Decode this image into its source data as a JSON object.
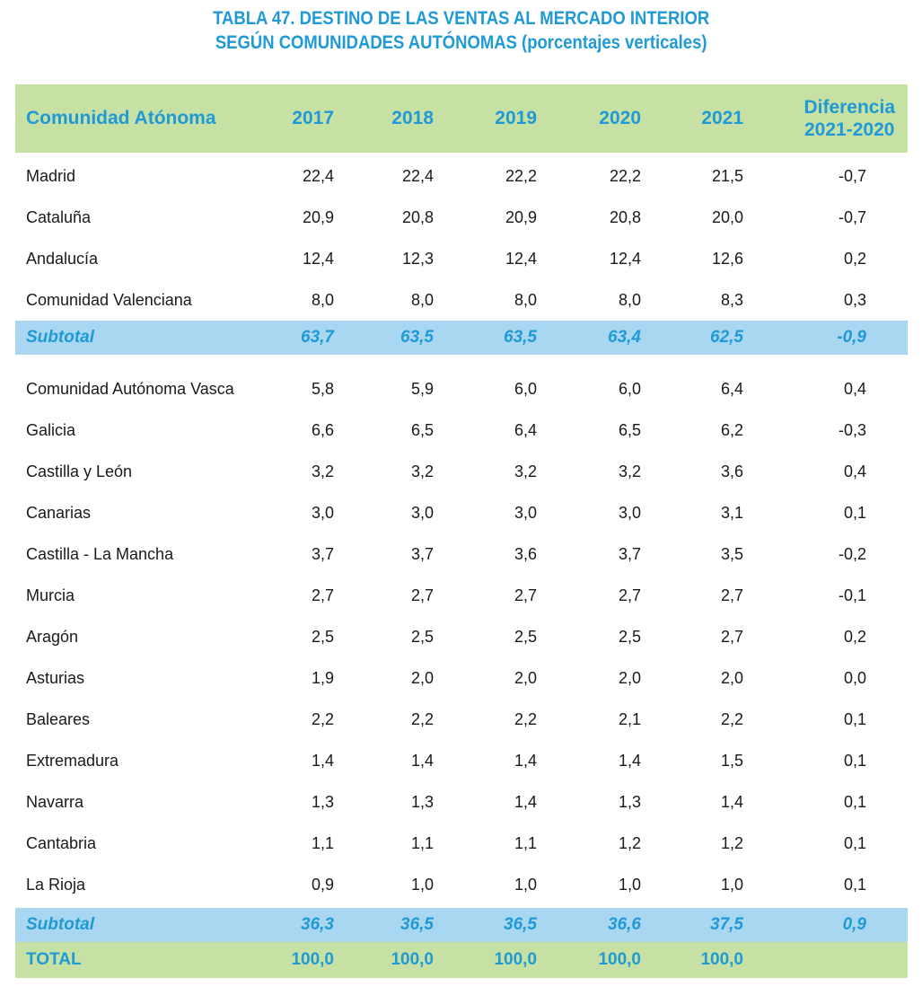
{
  "title": {
    "line1": "TABLA 47.  DESTINO DE LAS VENTAS AL MERCADO INTERIOR",
    "line2": "SEGÚN COMUNIDADES AUTÓNOMAS (porcentajes verticales)"
  },
  "header": {
    "name": "Comunidad Atónoma",
    "years": [
      "2017",
      "2018",
      "2019",
      "2020",
      "2021"
    ],
    "diff_line1": "Diferencia",
    "diff_line2": "2021-2020"
  },
  "group1": [
    {
      "name": "Madrid",
      "values": [
        "22,4",
        "22,4",
        "22,2",
        "22,2",
        "21,5",
        "-0,7"
      ]
    },
    {
      "name": "Cataluña",
      "values": [
        "20,9",
        "20,8",
        "20,9",
        "20,8",
        "20,0",
        "-0,7"
      ]
    },
    {
      "name": "Andalucía",
      "values": [
        "12,4",
        "12,3",
        "12,4",
        "12,4",
        "12,6",
        "0,2"
      ]
    },
    {
      "name": "Comunidad Valenciana",
      "values": [
        "8,0",
        "8,0",
        "8,0",
        "8,0",
        "8,3",
        "0,3"
      ]
    }
  ],
  "subtotal1": {
    "name": "Subtotal",
    "values": [
      "63,7",
      "63,5",
      "63,5",
      "63,4",
      "62,5",
      "-0,9"
    ]
  },
  "group2": [
    {
      "name": "Comunidad Autónoma Vasca",
      "values": [
        "5,8",
        "5,9",
        "6,0",
        "6,0",
        "6,4",
        "0,4"
      ]
    },
    {
      "name": "Galicia",
      "values": [
        "6,6",
        "6,5",
        "6,4",
        "6,5",
        "6,2",
        "-0,3"
      ]
    },
    {
      "name": "Castilla y León",
      "values": [
        "3,2",
        "3,2",
        "3,2",
        "3,2",
        "3,6",
        "0,4"
      ]
    },
    {
      "name": "Canarias",
      "values": [
        "3,0",
        "3,0",
        "3,0",
        "3,0",
        "3,1",
        "0,1"
      ]
    },
    {
      "name": "Castilla - La Mancha",
      "values": [
        "3,7",
        "3,7",
        "3,6",
        "3,7",
        "3,5",
        "-0,2"
      ]
    },
    {
      "name": "Murcia",
      "values": [
        "2,7",
        "2,7",
        "2,7",
        "2,7",
        "2,7",
        "-0,1"
      ]
    },
    {
      "name": "Aragón",
      "values": [
        "2,5",
        "2,5",
        "2,5",
        "2,5",
        "2,7",
        "0,2"
      ]
    },
    {
      "name": "Asturias",
      "values": [
        "1,9",
        "2,0",
        "2,0",
        "2,0",
        "2,0",
        "0,0"
      ]
    },
    {
      "name": "Baleares",
      "values": [
        "2,2",
        "2,2",
        "2,2",
        "2,1",
        "2,2",
        "0,1"
      ]
    },
    {
      "name": "Extremadura",
      "values": [
        "1,4",
        "1,4",
        "1,4",
        "1,4",
        "1,5",
        "0,1"
      ]
    },
    {
      "name": "Navarra",
      "values": [
        "1,3",
        "1,3",
        "1,4",
        "1,3",
        "1,4",
        "0,1"
      ]
    },
    {
      "name": "Cantabria",
      "values": [
        "1,1",
        "1,1",
        "1,1",
        "1,2",
        "1,2",
        "0,1"
      ]
    },
    {
      "name": "La Rioja",
      "values": [
        "0,9",
        "1,0",
        "1,0",
        "1,0",
        "1,0",
        "0,1"
      ]
    }
  ],
  "subtotal2": {
    "name": "Subtotal",
    "values": [
      "36,3",
      "36,5",
      "36,5",
      "36,6",
      "37,5",
      "0,9"
    ]
  },
  "total": {
    "name": "TOTAL",
    "values": [
      "100,0",
      "100,0",
      "100,0",
      "100,0",
      "100,0",
      ""
    ]
  },
  "colors": {
    "accent": "#1f9ad6",
    "header_bg": "#c7e0a4",
    "subtotal_bg": "#a9d7f1"
  }
}
